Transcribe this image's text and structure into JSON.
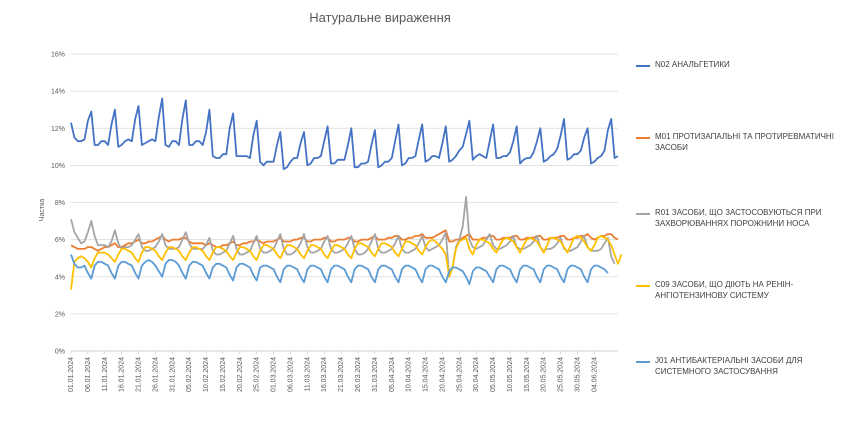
{
  "chart_data": {
    "type": "line",
    "title": "Натуральне вираження",
    "ylabel": "Частка",
    "xlabel": "",
    "ylim": [
      0,
      0.16
    ],
    "yticks": [
      0,
      0.02,
      0.04,
      0.06,
      0.08,
      0.1,
      0.12,
      0.14,
      0.16
    ],
    "ytick_labels": [
      "0%",
      "2%",
      "4%",
      "6%",
      "8%",
      "10%",
      "12%",
      "14%",
      "16%"
    ],
    "grid": "horizontal",
    "legend_position": "right",
    "x_start": "01.01.2024",
    "x_end": "04.06.2024",
    "x_tick_labels": [
      "01.01.2024",
      "06.01.2024",
      "11.01.2024",
      "16.01.2024",
      "21.01.2024",
      "26.01.2024",
      "31.01.2024",
      "05.02.2024",
      "10.02.2024",
      "15.02.2024",
      "20.02.2024",
      "25.02.2024",
      "01.03.2024",
      "06.03.2024",
      "11.03.2024",
      "16.03.2024",
      "21.03.2024",
      "26.03.2024",
      "31.03.2024",
      "05.04.2024",
      "10.04.2024",
      "15.04.2024",
      "20.04.2024",
      "25.04.2024",
      "30.04.2024",
      "05.05.2024",
      "10.05.2024",
      "15.05.2024",
      "20.05.2024",
      "25.05.2024",
      "30.05.2024",
      "04.06.2024"
    ],
    "series": [
      {
        "name": "N02 Анальгетики",
        "color": "#4472C4",
        "weekly_pattern": true,
        "approx_range": [
          0.098,
          0.137
        ],
        "values": [
          0.123,
          0.115,
          0.113,
          0.113,
          0.114,
          0.124,
          0.129,
          0.111,
          0.111,
          0.113,
          0.113,
          0.111,
          0.122,
          0.13,
          0.11,
          0.111,
          0.113,
          0.114,
          0.113,
          0.125,
          0.132,
          0.111,
          0.112,
          0.113,
          0.114,
          0.113,
          0.126,
          0.136,
          0.111,
          0.11,
          0.113,
          0.113,
          0.111,
          0.125,
          0.135,
          0.111,
          0.111,
          0.113,
          0.113,
          0.111,
          0.118,
          0.13,
          0.105,
          0.104,
          0.104,
          0.106,
          0.106,
          0.12,
          0.128,
          0.105,
          0.105,
          0.105,
          0.105,
          0.104,
          0.116,
          0.124,
          0.102,
          0.1,
          0.102,
          0.102,
          0.102,
          0.111,
          0.118,
          0.098,
          0.099,
          0.102,
          0.104,
          0.104,
          0.112,
          0.118,
          0.1,
          0.101,
          0.104,
          0.104,
          0.105,
          0.113,
          0.121,
          0.101,
          0.101,
          0.103,
          0.103,
          0.103,
          0.111,
          0.12,
          0.099,
          0.099,
          0.101,
          0.101,
          0.102,
          0.111,
          0.119,
          0.099,
          0.1,
          0.102,
          0.102,
          0.104,
          0.113,
          0.122,
          0.1,
          0.101,
          0.104,
          0.104,
          0.105,
          0.114,
          0.122,
          0.102,
          0.103,
          0.105,
          0.105,
          0.104,
          0.112,
          0.121,
          0.102,
          0.103,
          0.105,
          0.108,
          0.11,
          0.117,
          0.124,
          0.103,
          0.105,
          0.106,
          0.105,
          0.104,
          0.113,
          0.122,
          0.104,
          0.104,
          0.105,
          0.105,
          0.107,
          0.113,
          0.121,
          0.101,
          0.103,
          0.104,
          0.104,
          0.107,
          0.113,
          0.12,
          0.102,
          0.103,
          0.105,
          0.106,
          0.109,
          0.116,
          0.125,
          0.103,
          0.104,
          0.106,
          0.106,
          0.108,
          0.115,
          0.12,
          0.101,
          0.102,
          0.104,
          0.105,
          0.108,
          0.119,
          0.125,
          0.104,
          0.105
        ]
      },
      {
        "name": "M01 Протизапальні та протиревматичні засоби",
        "color": "#ED7D31",
        "approx_range": [
          0.054,
          0.065
        ],
        "values": [
          0.057,
          0.056,
          0.055,
          0.055,
          0.055,
          0.056,
          0.056,
          0.055,
          0.054,
          0.055,
          0.056,
          0.056,
          0.057,
          0.058,
          0.056,
          0.056,
          0.057,
          0.058,
          0.058,
          0.059,
          0.06,
          0.058,
          0.058,
          0.059,
          0.059,
          0.06,
          0.061,
          0.062,
          0.06,
          0.059,
          0.06,
          0.06,
          0.06,
          0.061,
          0.061,
          0.059,
          0.058,
          0.058,
          0.058,
          0.058,
          0.057,
          0.058,
          0.057,
          0.056,
          0.056,
          0.057,
          0.057,
          0.058,
          0.059,
          0.057,
          0.057,
          0.058,
          0.058,
          0.059,
          0.059,
          0.06,
          0.059,
          0.058,
          0.059,
          0.059,
          0.059,
          0.06,
          0.061,
          0.059,
          0.059,
          0.059,
          0.06,
          0.06,
          0.061,
          0.061,
          0.059,
          0.059,
          0.06,
          0.06,
          0.06,
          0.061,
          0.061,
          0.059,
          0.059,
          0.06,
          0.06,
          0.06,
          0.061,
          0.061,
          0.059,
          0.059,
          0.06,
          0.06,
          0.06,
          0.061,
          0.062,
          0.06,
          0.06,
          0.06,
          0.061,
          0.061,
          0.062,
          0.062,
          0.06,
          0.06,
          0.061,
          0.061,
          0.062,
          0.062,
          0.063,
          0.061,
          0.061,
          0.061,
          0.062,
          0.063,
          0.064,
          0.065,
          0.059,
          0.059,
          0.06,
          0.06,
          0.061,
          0.062,
          0.063,
          0.06,
          0.06,
          0.06,
          0.061,
          0.061,
          0.062,
          0.062,
          0.06,
          0.06,
          0.061,
          0.061,
          0.061,
          0.062,
          0.062,
          0.06,
          0.06,
          0.061,
          0.061,
          0.061,
          0.062,
          0.062,
          0.06,
          0.06,
          0.061,
          0.061,
          0.061,
          0.062,
          0.062,
          0.06,
          0.06,
          0.061,
          0.061,
          0.062,
          0.062,
          0.063,
          0.061,
          0.06,
          0.061,
          0.062,
          0.062,
          0.063,
          0.063,
          0.061,
          0.06
        ]
      },
      {
        "name": "R01 Засоби, що застосовуються при захворюваннях порожнини носа",
        "color": "#A5A5A5",
        "approx_range": [
          0.04,
          0.083
        ],
        "values": [
          0.071,
          0.064,
          0.061,
          0.058,
          0.059,
          0.064,
          0.07,
          0.062,
          0.057,
          0.057,
          0.057,
          0.056,
          0.059,
          0.065,
          0.058,
          0.055,
          0.056,
          0.056,
          0.057,
          0.06,
          0.063,
          0.056,
          0.054,
          0.054,
          0.055,
          0.056,
          0.059,
          0.063,
          0.057,
          0.055,
          0.055,
          0.055,
          0.056,
          0.06,
          0.064,
          0.058,
          0.055,
          0.055,
          0.055,
          0.055,
          0.057,
          0.061,
          0.054,
          0.052,
          0.052,
          0.053,
          0.054,
          0.058,
          0.062,
          0.055,
          0.052,
          0.052,
          0.053,
          0.054,
          0.058,
          0.062,
          0.055,
          0.053,
          0.053,
          0.054,
          0.055,
          0.059,
          0.063,
          0.055,
          0.052,
          0.052,
          0.053,
          0.055,
          0.058,
          0.063,
          0.056,
          0.053,
          0.053,
          0.054,
          0.055,
          0.059,
          0.062,
          0.055,
          0.053,
          0.053,
          0.054,
          0.055,
          0.058,
          0.062,
          0.055,
          0.052,
          0.052,
          0.053,
          0.055,
          0.059,
          0.063,
          0.055,
          0.053,
          0.053,
          0.054,
          0.055,
          0.058,
          0.062,
          0.055,
          0.053,
          0.053,
          0.054,
          0.055,
          0.058,
          0.062,
          0.056,
          0.054,
          0.055,
          0.056,
          0.057,
          0.06,
          0.064,
          0.04,
          0.045,
          0.056,
          0.06,
          0.067,
          0.083,
          0.06,
          0.056,
          0.055,
          0.056,
          0.057,
          0.06,
          0.063,
          0.057,
          0.055,
          0.055,
          0.056,
          0.057,
          0.059,
          0.062,
          0.056,
          0.055,
          0.055,
          0.056,
          0.057,
          0.059,
          0.062,
          0.056,
          0.054,
          0.055,
          0.055,
          0.056,
          0.058,
          0.061,
          0.055,
          0.054,
          0.054,
          0.055,
          0.056,
          0.059,
          0.062,
          0.056,
          0.054,
          0.054,
          0.054,
          0.055,
          0.058,
          0.061,
          0.051,
          0.047
        ]
      },
      {
        "name": "C09 Засоби, що діють на ренін-ангіотензинову систему",
        "color": "#FFC000",
        "approx_range": [
          0.033,
          0.062
        ],
        "values": [
          0.033,
          0.048,
          0.05,
          0.051,
          0.05,
          0.048,
          0.045,
          0.05,
          0.053,
          0.053,
          0.053,
          0.052,
          0.05,
          0.048,
          0.052,
          0.055,
          0.055,
          0.054,
          0.053,
          0.05,
          0.048,
          0.053,
          0.056,
          0.056,
          0.055,
          0.054,
          0.051,
          0.049,
          0.053,
          0.056,
          0.056,
          0.055,
          0.054,
          0.051,
          0.049,
          0.053,
          0.056,
          0.056,
          0.055,
          0.054,
          0.051,
          0.049,
          0.053,
          0.056,
          0.056,
          0.055,
          0.054,
          0.051,
          0.049,
          0.053,
          0.056,
          0.056,
          0.055,
          0.054,
          0.051,
          0.049,
          0.054,
          0.057,
          0.057,
          0.056,
          0.055,
          0.052,
          0.05,
          0.054,
          0.057,
          0.057,
          0.056,
          0.055,
          0.052,
          0.05,
          0.054,
          0.057,
          0.057,
          0.056,
          0.055,
          0.052,
          0.05,
          0.054,
          0.057,
          0.057,
          0.056,
          0.055,
          0.052,
          0.05,
          0.055,
          0.058,
          0.058,
          0.057,
          0.056,
          0.053,
          0.051,
          0.055,
          0.058,
          0.058,
          0.057,
          0.056,
          0.053,
          0.051,
          0.055,
          0.059,
          0.059,
          0.058,
          0.057,
          0.054,
          0.052,
          0.056,
          0.059,
          0.06,
          0.059,
          0.057,
          0.055,
          0.052,
          0.04,
          0.045,
          0.055,
          0.059,
          0.06,
          0.061,
          0.055,
          0.052,
          0.057,
          0.06,
          0.06,
          0.059,
          0.058,
          0.055,
          0.053,
          0.057,
          0.06,
          0.061,
          0.06,
          0.059,
          0.056,
          0.053,
          0.057,
          0.06,
          0.061,
          0.06,
          0.059,
          0.056,
          0.053,
          0.057,
          0.061,
          0.061,
          0.06,
          0.059,
          0.056,
          0.053,
          0.057,
          0.061,
          0.062,
          0.061,
          0.059,
          0.056,
          0.054,
          0.057,
          0.061,
          0.062,
          0.061,
          0.06,
          0.057,
          0.052,
          0.047,
          0.052
        ]
      },
      {
        "name": "J01 Антибактеріальні засоби для системного застосування",
        "color": "#5B9BD5",
        "approx_range": [
          0.036,
          0.052
        ],
        "values": [
          0.052,
          0.047,
          0.045,
          0.045,
          0.046,
          0.042,
          0.039,
          0.046,
          0.048,
          0.048,
          0.047,
          0.046,
          0.042,
          0.039,
          0.046,
          0.048,
          0.048,
          0.047,
          0.046,
          0.042,
          0.039,
          0.046,
          0.048,
          0.049,
          0.048,
          0.046,
          0.043,
          0.04,
          0.047,
          0.049,
          0.049,
          0.048,
          0.046,
          0.042,
          0.039,
          0.046,
          0.048,
          0.048,
          0.047,
          0.046,
          0.042,
          0.039,
          0.045,
          0.047,
          0.047,
          0.046,
          0.045,
          0.041,
          0.038,
          0.045,
          0.047,
          0.047,
          0.046,
          0.045,
          0.041,
          0.038,
          0.045,
          0.046,
          0.046,
          0.045,
          0.044,
          0.04,
          0.037,
          0.044,
          0.046,
          0.046,
          0.045,
          0.044,
          0.04,
          0.037,
          0.044,
          0.046,
          0.046,
          0.045,
          0.044,
          0.04,
          0.037,
          0.044,
          0.046,
          0.046,
          0.045,
          0.044,
          0.04,
          0.037,
          0.044,
          0.046,
          0.046,
          0.045,
          0.044,
          0.04,
          0.037,
          0.044,
          0.046,
          0.046,
          0.045,
          0.044,
          0.04,
          0.037,
          0.044,
          0.046,
          0.046,
          0.045,
          0.044,
          0.04,
          0.037,
          0.044,
          0.046,
          0.046,
          0.045,
          0.044,
          0.04,
          0.037,
          0.043,
          0.045,
          0.045,
          0.044,
          0.043,
          0.04,
          0.036,
          0.043,
          0.045,
          0.045,
          0.044,
          0.043,
          0.04,
          0.037,
          0.044,
          0.046,
          0.046,
          0.045,
          0.044,
          0.04,
          0.037,
          0.044,
          0.046,
          0.046,
          0.045,
          0.044,
          0.04,
          0.037,
          0.044,
          0.046,
          0.046,
          0.045,
          0.044,
          0.04,
          0.037,
          0.044,
          0.046,
          0.046,
          0.045,
          0.044,
          0.04,
          0.037,
          0.044,
          0.046,
          0.046,
          0.045,
          0.044,
          0.042
        ]
      }
    ]
  }
}
